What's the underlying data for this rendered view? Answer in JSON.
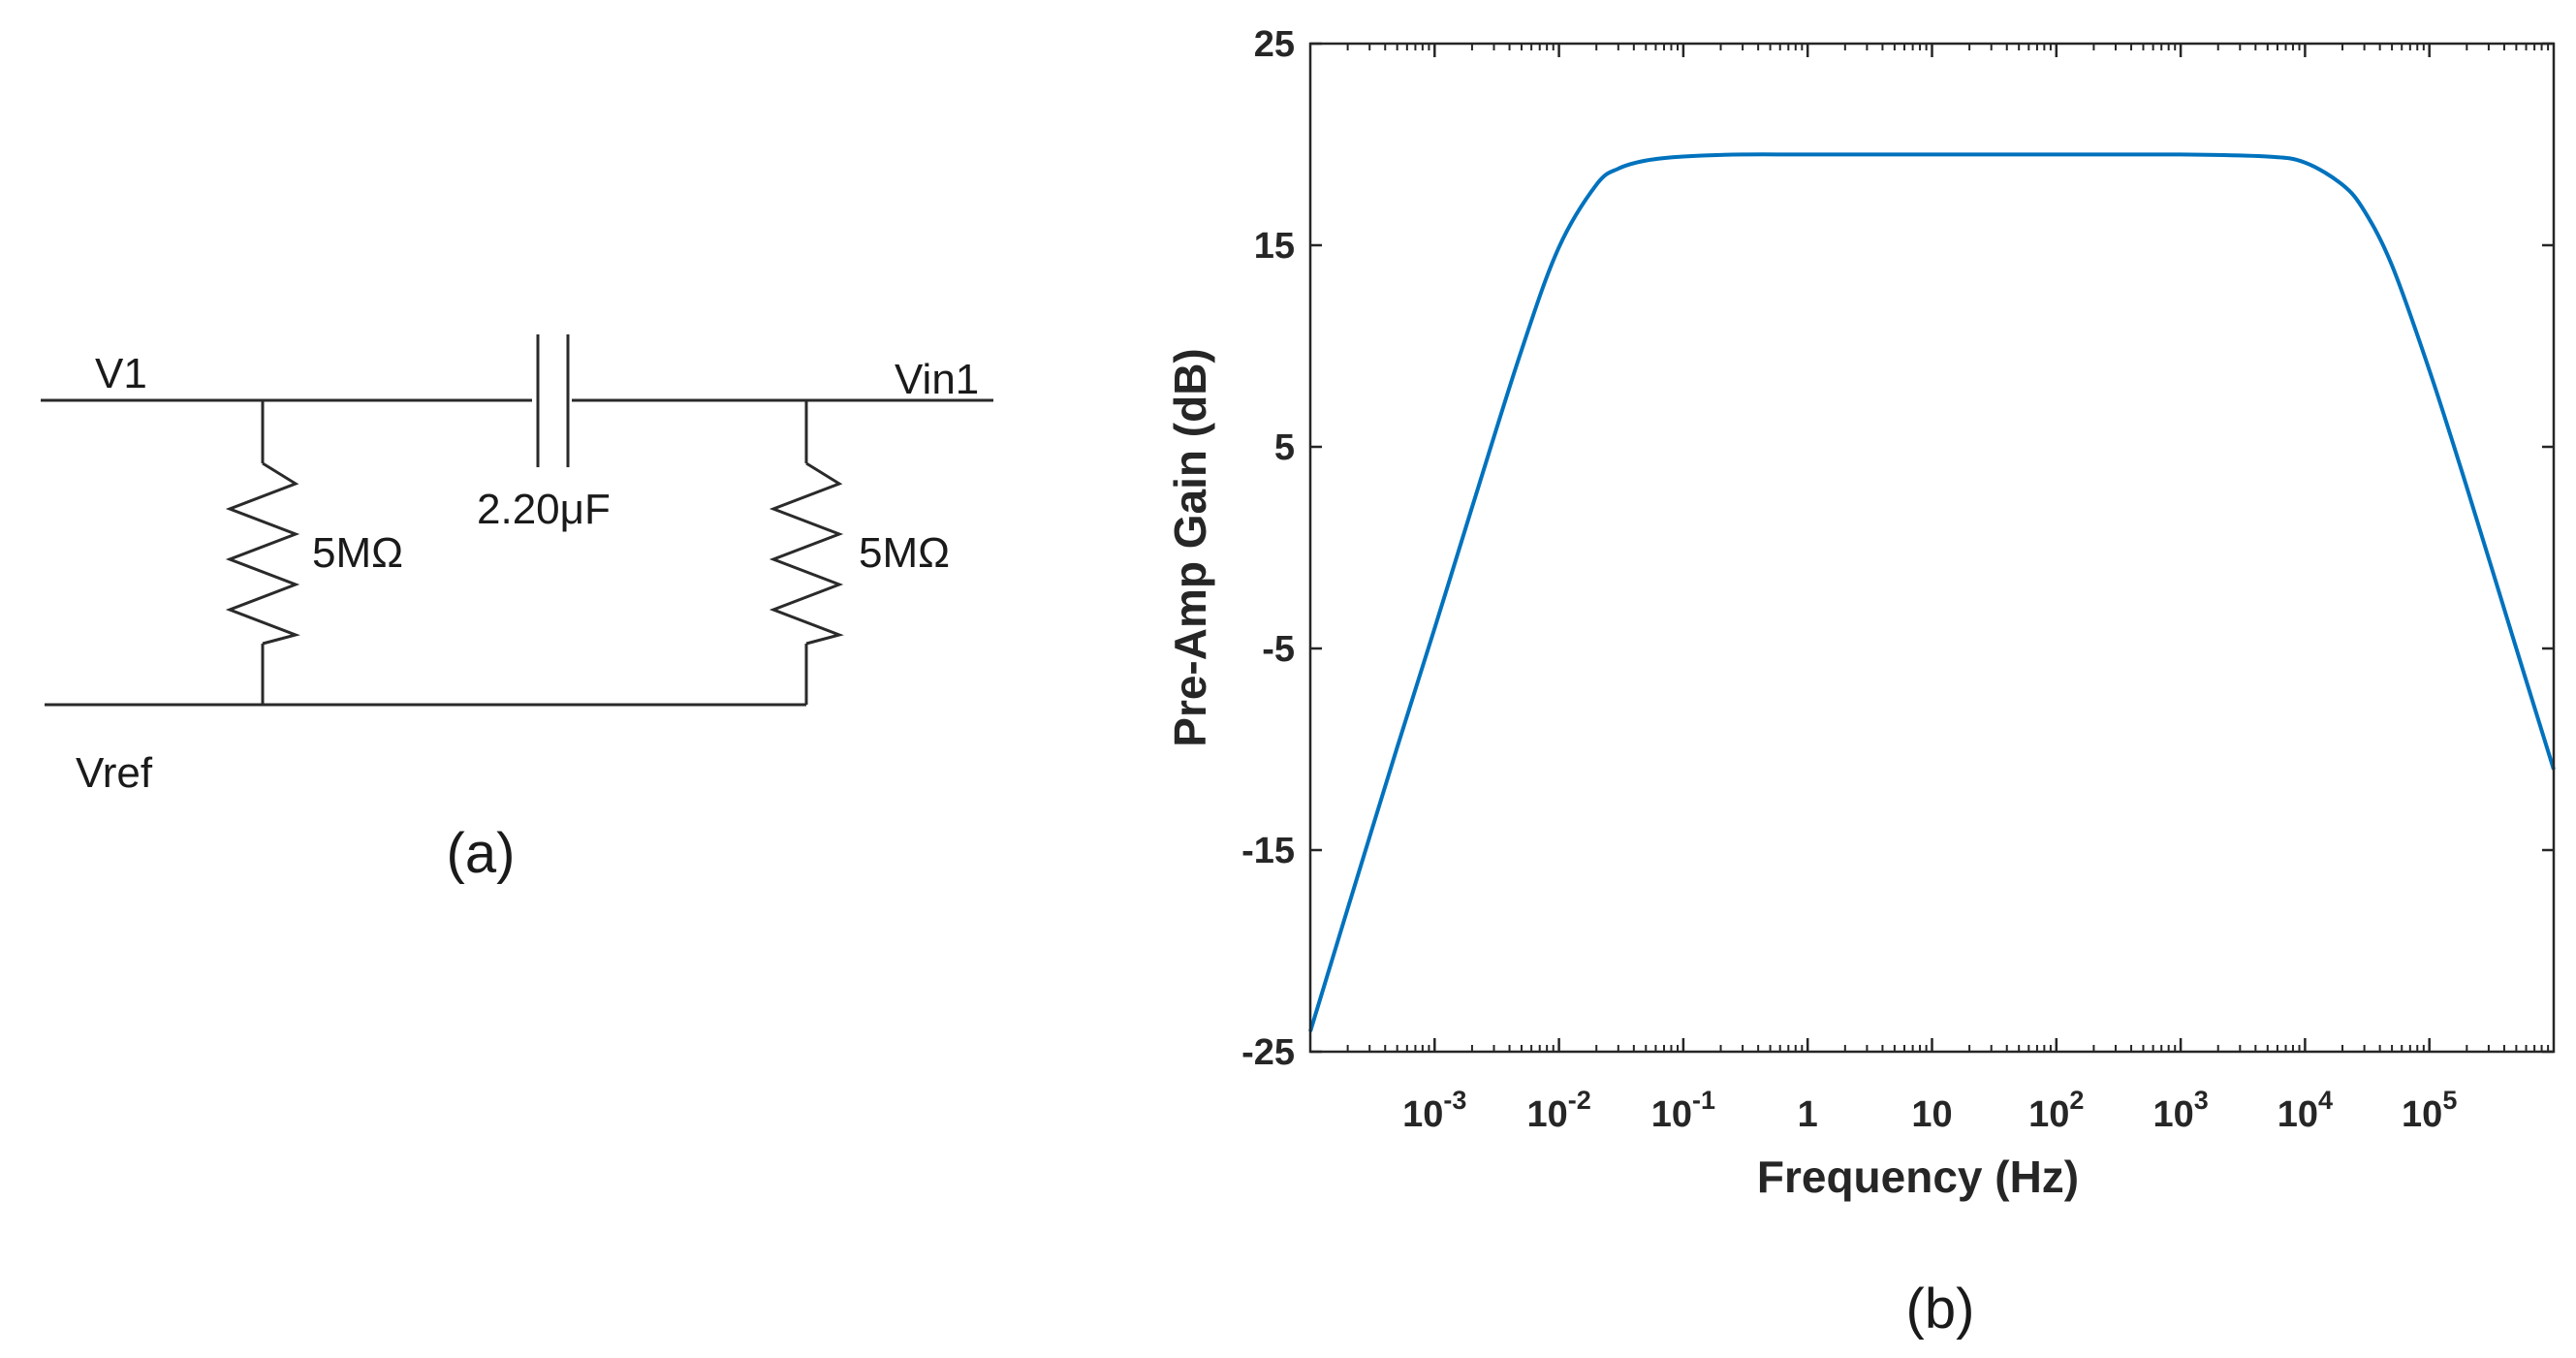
{
  "circuit": {
    "input_label": "V1",
    "output_label": "Vin1",
    "reference_label": "Vref",
    "capacitor_label": "2.20μF",
    "resistor_left_label": "5MΩ",
    "resistor_right_label": "5MΩ",
    "panel_label": "(a)"
  },
  "chart_panel_label": "(b)",
  "chart_data": {
    "type": "line",
    "title": "",
    "xlabel": "Frequency (Hz)",
    "ylabel": "Pre-Amp Gain (dB)",
    "xscale": "log",
    "xlim": [
      0.0001,
      1000000
    ],
    "ylim": [
      -25,
      25
    ],
    "yticks": [
      -25,
      -15,
      -5,
      5,
      15,
      25
    ],
    "xticks": [
      {
        "value": 0.001,
        "base": "10",
        "exp": "-3"
      },
      {
        "value": 0.01,
        "base": "10",
        "exp": "-2"
      },
      {
        "value": 0.1,
        "base": "10",
        "exp": "-1"
      },
      {
        "value": 1,
        "base": "1",
        "exp": ""
      },
      {
        "value": 10,
        "base": "10",
        "exp": ""
      },
      {
        "value": 100,
        "base": "10",
        "exp": "2"
      },
      {
        "value": 1000,
        "base": "10",
        "exp": "3"
      },
      {
        "value": 10000,
        "base": "10",
        "exp": "4"
      },
      {
        "value": 100000,
        "base": "10",
        "exp": "5"
      }
    ],
    "grid": false,
    "series": [
      {
        "color": "#0072bd",
        "x": [
          0.0001,
          0.0002,
          0.0005,
          0.001,
          0.002,
          0.005,
          0.01,
          0.02,
          0.03,
          0.05,
          0.1,
          0.3,
          1,
          10,
          100,
          1000,
          5000,
          10000,
          20000,
          30000,
          50000,
          100000,
          200000,
          500000,
          1000000
        ],
        "y": [
          -24.0,
          -17.9,
          -9.9,
          -4.0,
          2.0,
          9.8,
          14.9,
          18.0,
          18.8,
          19.2,
          19.4,
          19.5,
          19.5,
          19.5,
          19.5,
          19.5,
          19.4,
          19.1,
          18.0,
          16.7,
          14.0,
          8.8,
          3.0,
          -5.0,
          -11.0
        ]
      }
    ]
  }
}
